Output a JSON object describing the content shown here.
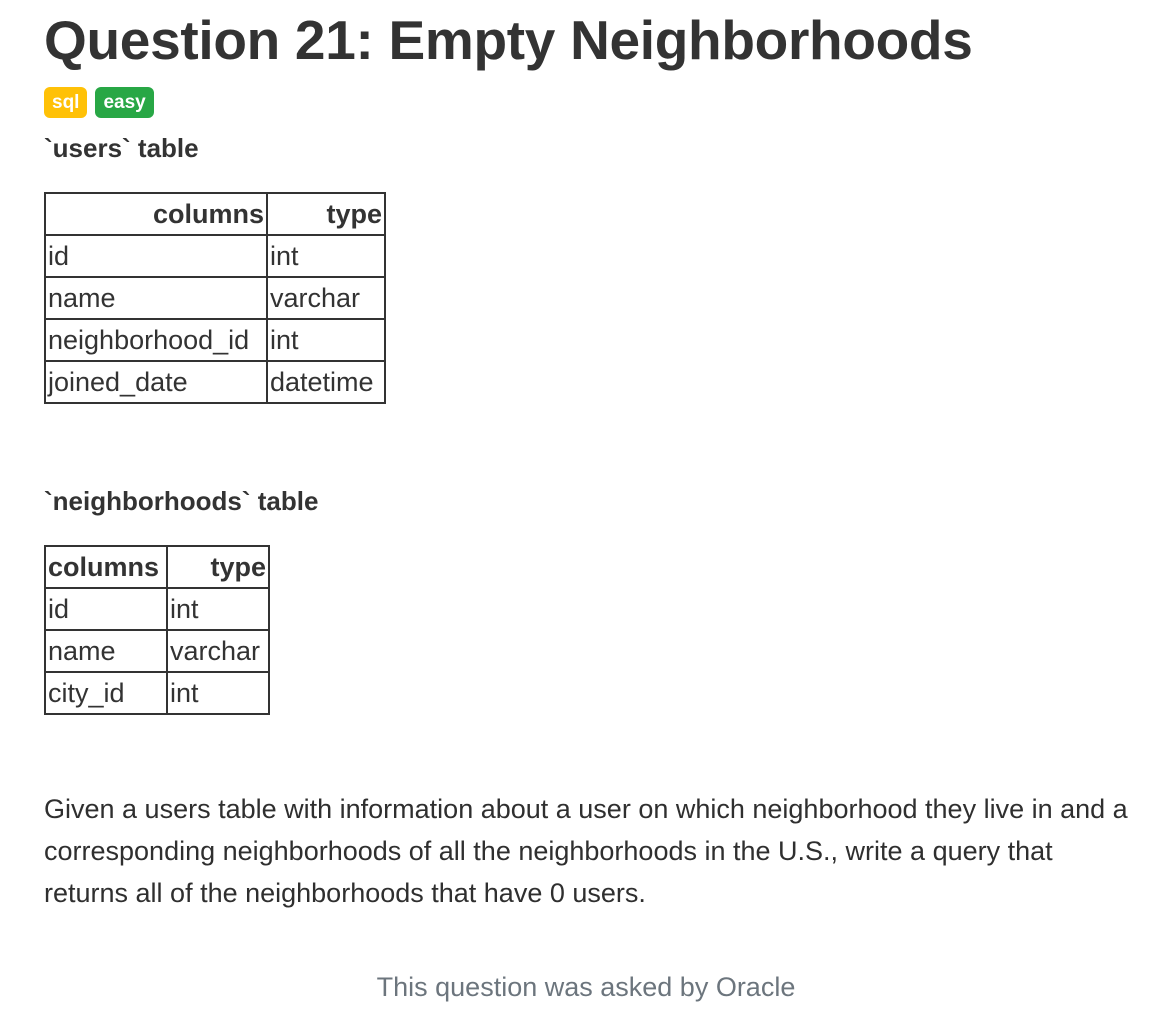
{
  "title": "Question 21: Empty Neighborhoods",
  "tags": [
    "sql",
    "easy"
  ],
  "tables": [
    {
      "heading": "`users` table",
      "headers": [
        "columns",
        "type"
      ],
      "rows": [
        [
          "id",
          "int"
        ],
        [
          "name",
          "varchar"
        ],
        [
          "neighborhood_id",
          "int"
        ],
        [
          "joined_date",
          "datetime"
        ]
      ]
    },
    {
      "heading": "`neighborhoods` table",
      "headers": [
        "columns",
        "type"
      ],
      "rows": [
        [
          "id",
          "int"
        ],
        [
          "name",
          "varchar"
        ],
        [
          "city_id",
          "int"
        ]
      ]
    }
  ],
  "description": "Given a users table with information about a user on which neighborhood they live in and a corresponding neighborhoods of all the neighborhoods in the U.S., write a query that returns all of the neighborhoods that have 0 users.",
  "footer": "This question was asked by Oracle",
  "colors": {
    "sql_badge": "#ffc107",
    "easy_badge": "#28a745",
    "footer_text": "#6c757d"
  }
}
